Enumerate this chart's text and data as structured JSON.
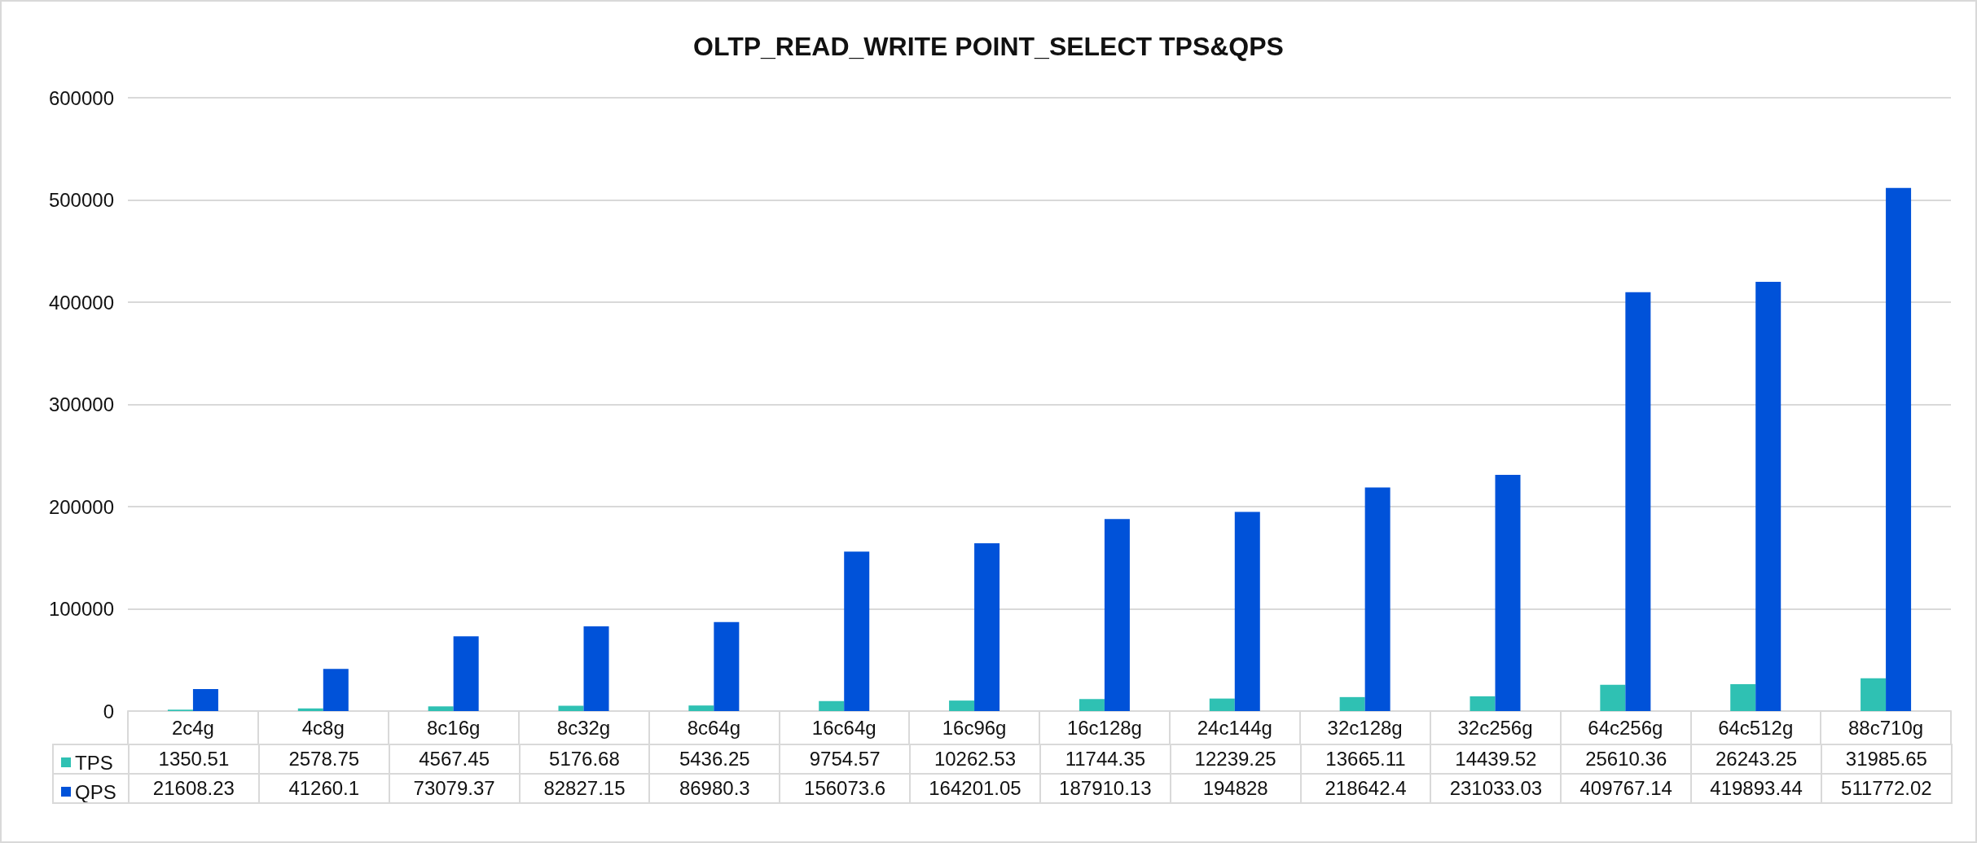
{
  "chart_data": {
    "type": "bar",
    "title": "OLTP_READ_WRITE POINT_SELECT TPS&QPS",
    "categories": [
      "2c4g",
      "4c8g",
      "8c16g",
      "8c32g",
      "8c64g",
      "16c64g",
      "16c96g",
      "16c128g",
      "24c144g",
      "32c128g",
      "32c256g",
      "64c256g",
      "64c512g",
      "88c710g"
    ],
    "series": [
      {
        "name": "TPS",
        "color": "#2fc1b3",
        "values": [
          1350.51,
          2578.75,
          4567.45,
          5176.68,
          5436.25,
          9754.57,
          10262.53,
          11744.35,
          12239.25,
          13665.11,
          14439.52,
          25610.36,
          26243.25,
          31985.65
        ]
      },
      {
        "name": "QPS",
        "color": "#0052d9",
        "values": [
          21608.23,
          41260.1,
          73079.37,
          82827.15,
          86980.3,
          156073.6,
          164201.05,
          187910.13,
          194828,
          218642.4,
          231033.03,
          409767.14,
          419893.44,
          511772.02
        ]
      }
    ],
    "ylim": [
      0,
      600000
    ],
    "yticks": [
      0,
      100000,
      200000,
      300000,
      400000,
      500000,
      600000
    ],
    "grid": "y",
    "legend": "bottom left",
    "data_labels": true
  }
}
